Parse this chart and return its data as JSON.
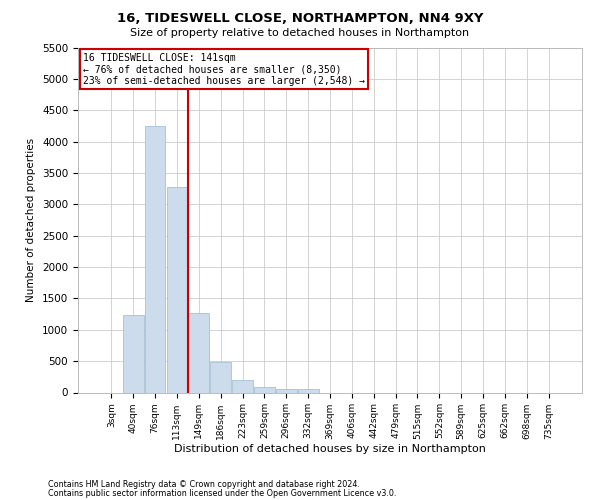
{
  "title": "16, TIDESWELL CLOSE, NORTHAMPTON, NN4 9XY",
  "subtitle": "Size of property relative to detached houses in Northampton",
  "xlabel": "Distribution of detached houses by size in Northampton",
  "ylabel": "Number of detached properties",
  "footer1": "Contains HM Land Registry data © Crown copyright and database right 2024.",
  "footer2": "Contains public sector information licensed under the Open Government Licence v3.0.",
  "property_label": "16 TIDESWELL CLOSE: 141sqm",
  "annotation_line1": "← 76% of detached houses are smaller (8,350)",
  "annotation_line2": "23% of semi-detached houses are larger (2,548) →",
  "bar_color": "#ccdcec",
  "bar_edgecolor": "#9ab8d0",
  "vline_color": "#cc0000",
  "annotation_box_edgecolor": "#cc0000",
  "categories": [
    "3sqm",
    "40sqm",
    "76sqm",
    "113sqm",
    "149sqm",
    "186sqm",
    "223sqm",
    "259sqm",
    "296sqm",
    "332sqm",
    "369sqm",
    "406sqm",
    "442sqm",
    "479sqm",
    "515sqm",
    "552sqm",
    "589sqm",
    "625sqm",
    "662sqm",
    "698sqm",
    "735sqm"
  ],
  "values": [
    0,
    1230,
    4250,
    3280,
    1270,
    480,
    200,
    90,
    55,
    55,
    0,
    0,
    0,
    0,
    0,
    0,
    0,
    0,
    0,
    0,
    0
  ],
  "ylim": [
    0,
    5500
  ],
  "yticks": [
    0,
    500,
    1000,
    1500,
    2000,
    2500,
    3000,
    3500,
    4000,
    4500,
    5000,
    5500
  ],
  "vline_x_index": 3.5,
  "background_color": "#ffffff",
  "grid_color": "#cccccc"
}
